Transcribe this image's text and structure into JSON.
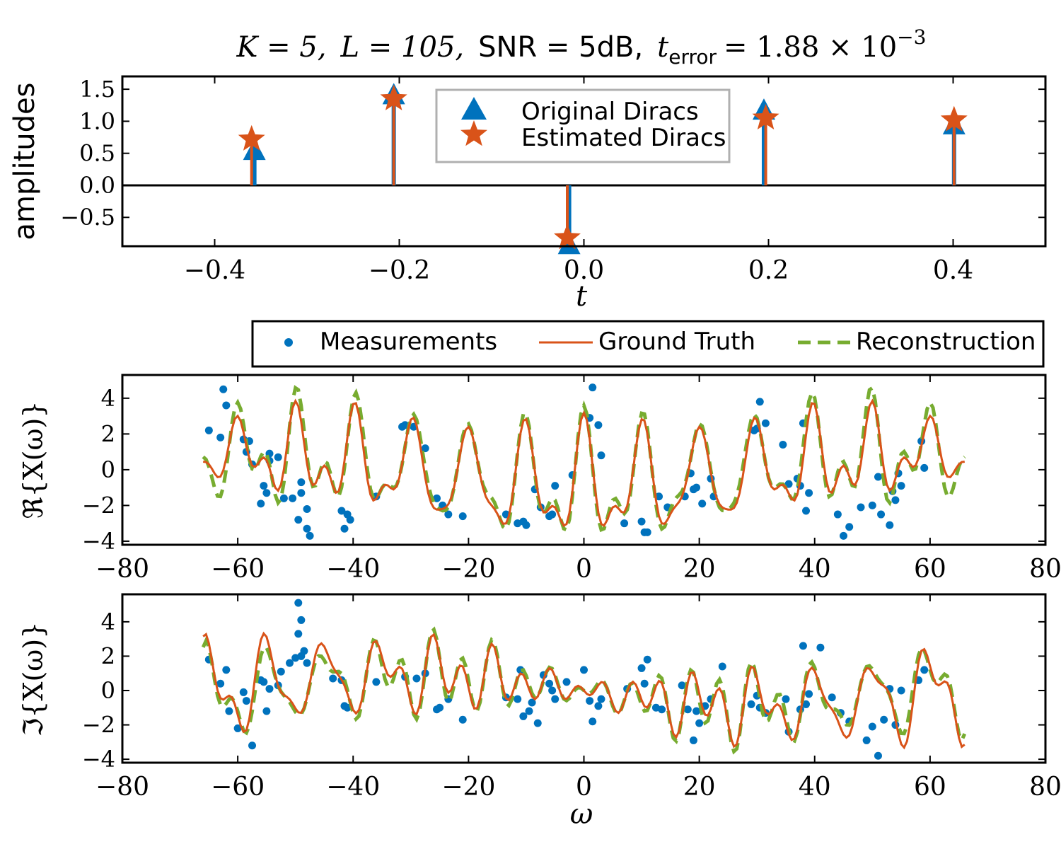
{
  "title": {
    "K_part": "K = 5,",
    "L_part": "L = 105,",
    "snr_part": "SNR = 5dB,",
    "t_symbol": "t",
    "t_sub": "error",
    "value_part": "= 1.88 × 10",
    "exponent": "−3"
  },
  "colors": {
    "original": "#0072BD",
    "estimated": "#D95319",
    "measurements": "#0072BD",
    "ground_truth": "#D95319",
    "reconstruction": "#77AC30"
  },
  "legend_top": {
    "original": "Original Diracs",
    "estimated": "Estimated Diracs"
  },
  "legend_bottom": {
    "measurements": "Measurements",
    "ground_truth": "Ground Truth",
    "reconstruction": "Reconstruction"
  },
  "chart_data": [
    {
      "type": "stem",
      "ylabel": "amplitudes",
      "xlabel": "t",
      "xlim": [
        -0.5,
        0.5
      ],
      "ylim": [
        -0.95,
        1.7
      ],
      "xticks": [
        -0.4,
        -0.2,
        0.0,
        0.2,
        0.4
      ],
      "xtick_labels": [
        "−0.4",
        "−0.2",
        "0.0",
        "0.2",
        "0.4"
      ],
      "yticks": [
        -0.5,
        0.0,
        0.5,
        1.0,
        1.5
      ],
      "ytick_labels": [
        "−0.5",
        "0.0",
        "0.5",
        "1.0",
        "1.5"
      ],
      "legend_position": "top-center",
      "series": [
        {
          "name": "Original Diracs",
          "marker": "triangle",
          "x": [
            -0.357,
            -0.206,
            -0.016,
            0.195,
            0.401
          ],
          "y": [
            0.55,
            1.42,
            -0.92,
            1.18,
            0.95
          ]
        },
        {
          "name": "Estimated Diracs",
          "marker": "star",
          "x": [
            -0.36,
            -0.206,
            -0.018,
            0.197,
            0.401
          ],
          "y": [
            0.72,
            1.35,
            -0.82,
            1.05,
            1.02
          ]
        }
      ]
    },
    {
      "type": "line+scatter",
      "ylabel": "ℜ{X(ω)}",
      "xlim": [
        -80,
        80
      ],
      "ylim": [
        -4.2,
        5.3
      ],
      "xticks": [
        -80,
        -60,
        -40,
        -20,
        0,
        20,
        40,
        60,
        80
      ],
      "xtick_labels": [
        "−80",
        "−60",
        "−40",
        "−20",
        "0",
        "20",
        "40",
        "60",
        "80"
      ],
      "yticks": [
        -4,
        -2,
        0,
        2,
        4
      ],
      "ytick_labels": [
        "−4",
        "−2",
        "0",
        "2",
        "4"
      ],
      "legend_position": "above",
      "measurements": {
        "x": [
          -65,
          -63,
          -62.5,
          -62,
          -59,
          -58.5,
          -58,
          -57.5,
          -56,
          -55.5,
          -55,
          -54.5,
          -54.5,
          -53,
          -52,
          -50.5,
          -49.5,
          -49,
          -49,
          -48,
          -48,
          -47.5,
          -42,
          -41.5,
          -41,
          -40.5,
          -36,
          -31.5,
          -31,
          -29.5,
          -27.5,
          -25.5,
          -24.5,
          -23.5,
          -21,
          -13.5,
          -11.5,
          -10.5,
          -10,
          -8.5,
          -7.5,
          -6,
          -5.5,
          -5,
          -2,
          1,
          1.5,
          2.5,
          3,
          7,
          10,
          10.5,
          11,
          13,
          14.5,
          17.5,
          18.5,
          19,
          19.5,
          20.5,
          22,
          22.5,
          29.5,
          30,
          30.5,
          31.5,
          34.5,
          35.5,
          37,
          37.5,
          38,
          38.5,
          39,
          44,
          45,
          46,
          48,
          50,
          51,
          51.5,
          53,
          53.5,
          54,
          54.5,
          55,
          58.5,
          59
        ],
        "y": [
          2.2,
          1.8,
          4.5,
          3.6,
          1.7,
          1.0,
          1.6,
          0.3,
          -1.9,
          -0.9,
          -1.3,
          0.9,
          0.5,
          0.7,
          -1.6,
          -1.6,
          -2.8,
          -0.7,
          -1.3,
          -2.2,
          -3.3,
          -3.7,
          -2.3,
          -3.3,
          -2.5,
          -2.8,
          -1.5,
          2.4,
          2.5,
          2.4,
          1.2,
          -1.6,
          -2.0,
          -2.5,
          -2.6,
          -2.5,
          -3.0,
          -2.9,
          -3.1,
          -1.1,
          -2.1,
          -2.6,
          -2.5,
          -0.9,
          -0.3,
          2.9,
          4.6,
          2.5,
          0.8,
          -3.0,
          -2.9,
          -3.5,
          -3.5,
          -1.5,
          -2.1,
          -1.5,
          -0.2,
          -1.1,
          -1.0,
          -1.9,
          -0.5,
          -1.5,
          2.2,
          2.3,
          3.8,
          2.6,
          1.4,
          -0.8,
          -0.5,
          -0.9,
          2.6,
          -2.3,
          -1.3,
          -2.5,
          -3.7,
          -3.2,
          -2.1,
          -2.0,
          -0.4,
          -2.5,
          -3.1,
          -1.2,
          -1.7,
          -0.2,
          -0.9,
          1.6,
          0.1
        ]
      }
    },
    {
      "type": "line+scatter",
      "ylabel": "ℑ{X(ω)}",
      "xlabel": "ω",
      "xlim": [
        -80,
        80
      ],
      "ylim": [
        -4.2,
        5.6
      ],
      "xticks": [
        -80,
        -60,
        -40,
        -20,
        0,
        20,
        40,
        60,
        80
      ],
      "xtick_labels": [
        "−80",
        "−60",
        "−40",
        "−20",
        "0",
        "20",
        "40",
        "60",
        "80"
      ],
      "yticks": [
        -4,
        -2,
        0,
        2,
        4
      ],
      "ytick_labels": [
        "−4",
        "−2",
        "0",
        "2",
        "4"
      ],
      "measurements": {
        "x": [
          -65,
          -63,
          -62,
          -61.5,
          -60,
          -59,
          -58.5,
          -57.5,
          -56,
          -55.5,
          -55,
          -54.5,
          -53,
          -52.5,
          -51,
          -50,
          -49.5,
          -49.5,
          -49,
          -49,
          -48.5,
          -48,
          -43.5,
          -42,
          -41.5,
          -41,
          -36,
          -31,
          -29,
          -27.5,
          -25.5,
          -25,
          -23.5,
          -21,
          -13.5,
          -11.5,
          -11,
          -10.5,
          -9.5,
          -9,
          -8,
          -7,
          -6,
          -5.5,
          -5,
          -3,
          0,
          1,
          1.5,
          2.5,
          3,
          7.5,
          10,
          10.5,
          11,
          12.5,
          13.5,
          17,
          18,
          19,
          19.5,
          20,
          21,
          22,
          24,
          29,
          30,
          30.5,
          31.5,
          35,
          35.5,
          37.5,
          38,
          38.5,
          39,
          41,
          43,
          44.5,
          46,
          49,
          50,
          51,
          52,
          53,
          54,
          55,
          58,
          59
        ],
        "y": [
          1.8,
          0.4,
          1.2,
          -1.2,
          -2.2,
          -0.1,
          -0.6,
          -3.2,
          0.6,
          0.5,
          -1.2,
          0.1,
          0.3,
          1.1,
          1.6,
          1.9,
          3.3,
          5.1,
          4.1,
          2.0,
          2.3,
          1.6,
          0.7,
          0.6,
          -0.9,
          -1.0,
          0.5,
          0.8,
          0.7,
          1.0,
          -1.1,
          -1.0,
          -0.5,
          -1.7,
          -0.4,
          -0.5,
          1.2,
          -1.5,
          -1.2,
          -0.7,
          -1.9,
          0.9,
          0.4,
          0.0,
          -0.5,
          0.5,
          1.2,
          -0.6,
          -1.8,
          -0.9,
          -0.5,
          0.1,
          1.3,
          0.4,
          1.8,
          -1.0,
          -1.1,
          0.3,
          -1.1,
          -2.9,
          -1.2,
          -1.9,
          -0.9,
          -0.5,
          1.4,
          -0.8,
          -0.3,
          -1.0,
          -1.3,
          -0.5,
          -2.4,
          -1.1,
          2.6,
          -0.8,
          -0.2,
          2.5,
          -0.4,
          -1.3,
          -1.8,
          -2.9,
          -2.1,
          -3.8,
          -1.7,
          0.1,
          -2.0,
          0.0,
          0.6,
          1.2
        ]
      }
    }
  ]
}
